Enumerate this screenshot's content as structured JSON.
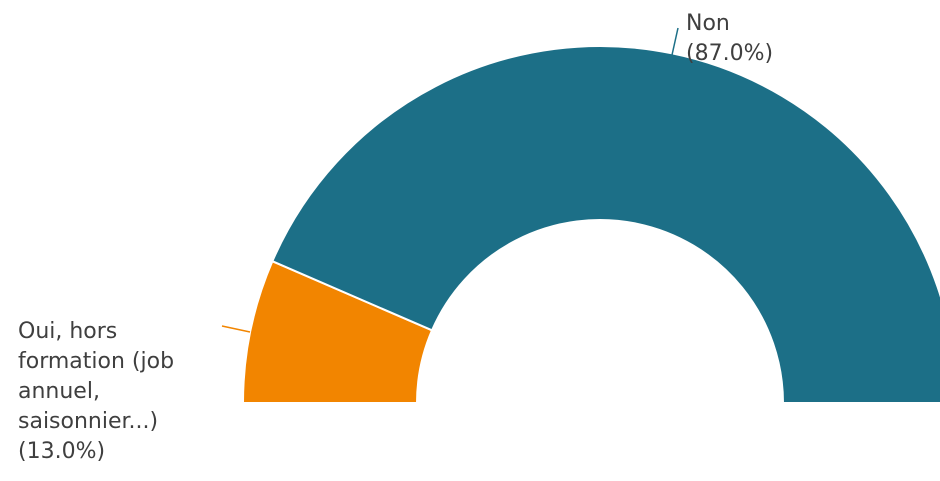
{
  "chart_data": {
    "type": "pie",
    "variant": "half-donut",
    "title": "",
    "legend": "none",
    "slices": [
      {
        "label_lines": [
          "Oui, hors",
          "formation (job",
          "annuel,",
          "saisonnier...)"
        ],
        "percent_label": "(13.0%)",
        "value": 13.0,
        "color": "#f28500"
      },
      {
        "label_lines": [
          "Non"
        ],
        "percent_label": "(87.0%)",
        "value": 87.0,
        "color": "#1c6f87"
      }
    ]
  }
}
